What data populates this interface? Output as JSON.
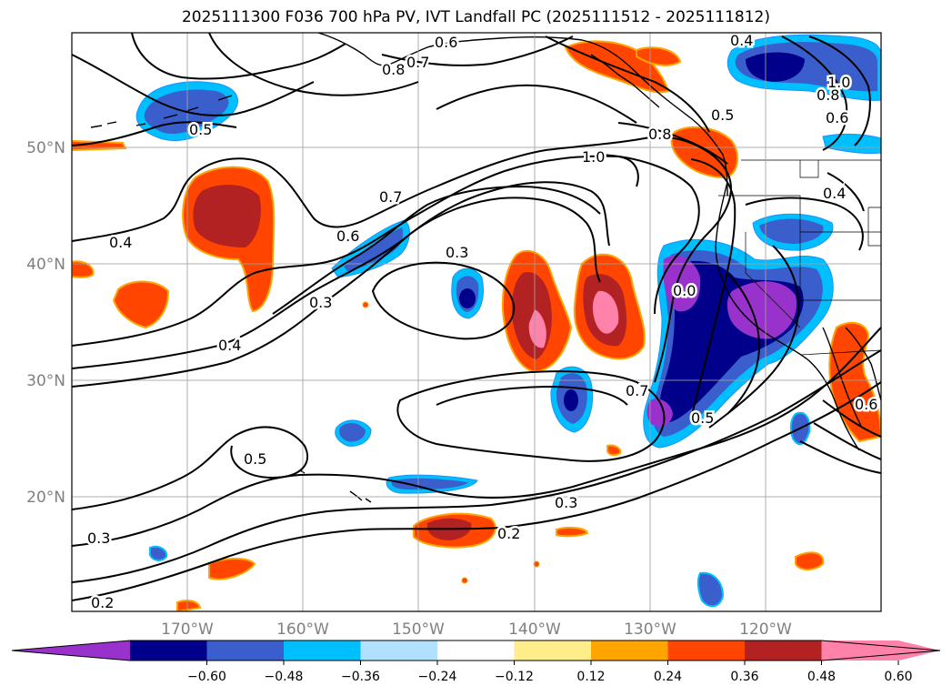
{
  "title": "2025111300 F036 700 hPa PV, IVT Landfall PC (2025111512 - 2025111812)",
  "latitudes": [
    {
      "label": "50°N",
      "value": 50
    },
    {
      "label": "40°N",
      "value": 40
    },
    {
      "label": "30°N",
      "value": 30
    },
    {
      "label": "20°N",
      "value": 20
    }
  ],
  "longitudes": [
    {
      "label": "170°W",
      "value": -170
    },
    {
      "label": "160°W",
      "value": -160
    },
    {
      "label": "150°W",
      "value": -150
    },
    {
      "label": "140°W",
      "value": -140
    },
    {
      "label": "130°W",
      "value": -130
    },
    {
      "label": "120°W",
      "value": -120
    }
  ],
  "colorbar": {
    "colors": [
      "#9932cc",
      "#00008b",
      "#3a5fcd",
      "#00bfff",
      "#b0e2ff",
      "#ffffff",
      "#ffec8b",
      "#ffa500",
      "#ff4500",
      "#b22222",
      "#ff82ab",
      "#ff82ab"
    ],
    "ticks": [
      "−0.60",
      "−0.48",
      "−0.36",
      "−0.24",
      "−0.12",
      "0.12",
      "0.24",
      "0.36",
      "0.48",
      "0.60"
    ]
  },
  "contour_labels": [
    "0.6",
    "0.7",
    "0.8",
    "0.4",
    "0.8",
    "1.0",
    "0.6",
    "0.5",
    "0.8",
    "1.0",
    "0.5",
    "0.7",
    "0.4",
    "0.4",
    "0.6",
    "0.3",
    "0.3",
    "0.4",
    "0.0",
    "0.7",
    "0.5",
    "0.5",
    "0.3",
    "0.3",
    "0.2",
    "0.2",
    "0.6"
  ]
}
